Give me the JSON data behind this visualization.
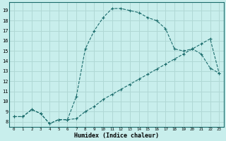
{
  "xlabel": "Humidex (Indice chaleur)",
  "bg_color": "#c8eeec",
  "grid_color": "#b0d8d5",
  "line_color": "#1a6b6b",
  "xlim": [
    -0.5,
    23.5
  ],
  "ylim": [
    7.5,
    19.8
  ],
  "xticks": [
    0,
    1,
    2,
    3,
    4,
    5,
    6,
    7,
    8,
    9,
    10,
    11,
    12,
    13,
    14,
    15,
    16,
    17,
    18,
    19,
    20,
    21,
    22,
    23
  ],
  "yticks": [
    8,
    9,
    10,
    11,
    12,
    13,
    14,
    15,
    16,
    17,
    18,
    19
  ],
  "line1_x": [
    0,
    1,
    2,
    3,
    4,
    5,
    6,
    7,
    8,
    9,
    10,
    11,
    12,
    13,
    14,
    15,
    16,
    17,
    18,
    19,
    20,
    21,
    22,
    23
  ],
  "line1_y": [
    8.5,
    8.5,
    9.2,
    8.8,
    7.8,
    8.2,
    8.2,
    8.3,
    9.0,
    9.5,
    10.2,
    10.7,
    11.2,
    11.7,
    12.2,
    12.7,
    13.2,
    13.7,
    14.2,
    14.7,
    15.2,
    15.7,
    16.2,
    12.8
  ],
  "line2_x": [
    0,
    1,
    2,
    3,
    4,
    5,
    6,
    7,
    8,
    9,
    10,
    11,
    12,
    13,
    14,
    15,
    16,
    17,
    18,
    19,
    20,
    21,
    22,
    23
  ],
  "line2_y": [
    8.5,
    8.5,
    9.2,
    8.8,
    7.8,
    8.2,
    8.2,
    10.5,
    15.2,
    17.0,
    18.3,
    19.2,
    19.2,
    19.0,
    18.8,
    18.3,
    18.0,
    17.2,
    15.2,
    15.0,
    15.2,
    14.7,
    13.3,
    12.8
  ]
}
